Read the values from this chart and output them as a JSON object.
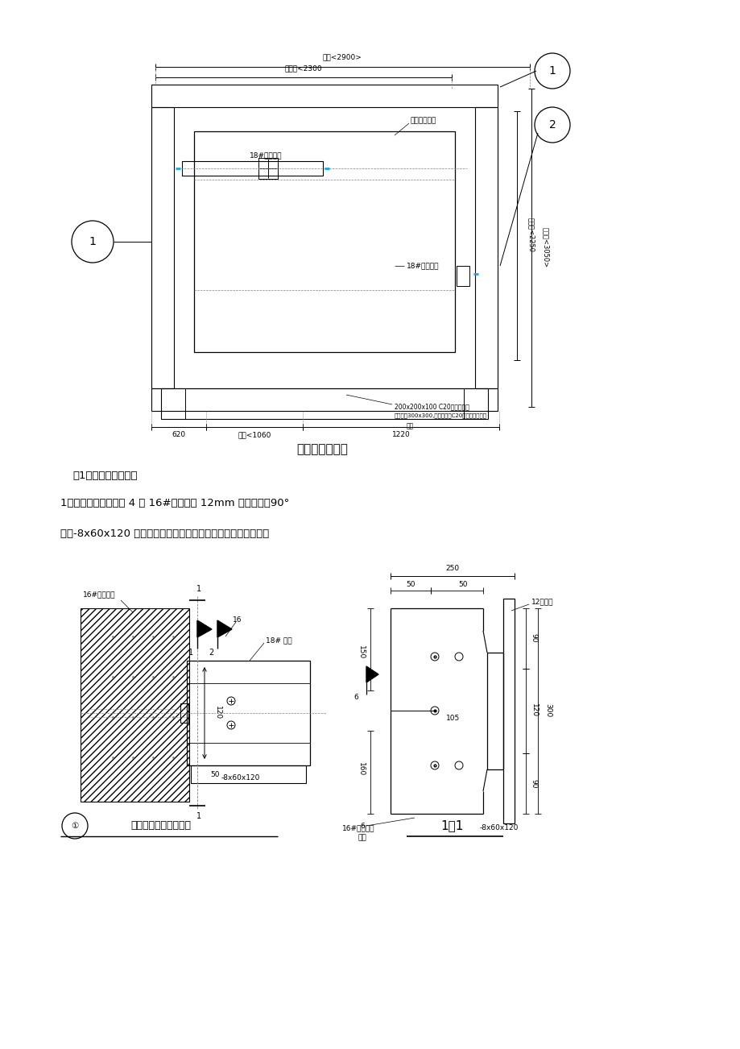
{
  "bg_color": "#ffffff",
  "line_color": "#000000",
  "cyan_color": "#00b0f0",
  "title1": "井道平面布置图",
  "title2": "（1）端头固定形式：",
  "para1": "1、结构梁上锚板采用 4 套 16#化学锚栓 12mm 厚钢锚板，90°",
  "para2": "加设-8x60x120 翼板与槽钢平面满焊进行两端头固定；下附图：",
  "label1": "钢梁与剪力墙连接节点",
  "label2": "1－1",
  "dim_2900": "轴线<2900>",
  "dim_2300": "槽钢距<2300",
  "dim_1060": "槽钢<1060",
  "dim_620": "620",
  "dim_1220": "1220",
  "dim_2250": "槽钢距<2250",
  "dim_3050": "井道距<3050>",
  "anno1": "18#槽钢在下",
  "anno2": "满焊进行固定",
  "anno3": "18#槽钢在上",
  "anno4": "200x200x100 C20混凝土垫块",
  "anno5": "槽体孔距300x300,其间空隙用C20细石混凝土填实",
  "anno6": "备固",
  "anno_left1": "16#化学螺栓",
  "anno_18": "18# 槽钢",
  "anno_left2": "16#化学螺栓",
  "anno_left3": "余固",
  "anno_8x60": "-8x60x120",
  "anno_8x60_2": "-8x60x120",
  "dim_250": "250",
  "dim_50a": "50",
  "dim_50b": "50",
  "dim_12": "12厘钢板",
  "dim_6a": "6",
  "dim_150": "150",
  "dim_6b": "6",
  "dim_105": "105",
  "dim_90a": "90",
  "dim_120_r": "120",
  "dim_90b": "90",
  "dim_300": "300",
  "dim_160": "160",
  "dim_120_l": "120"
}
